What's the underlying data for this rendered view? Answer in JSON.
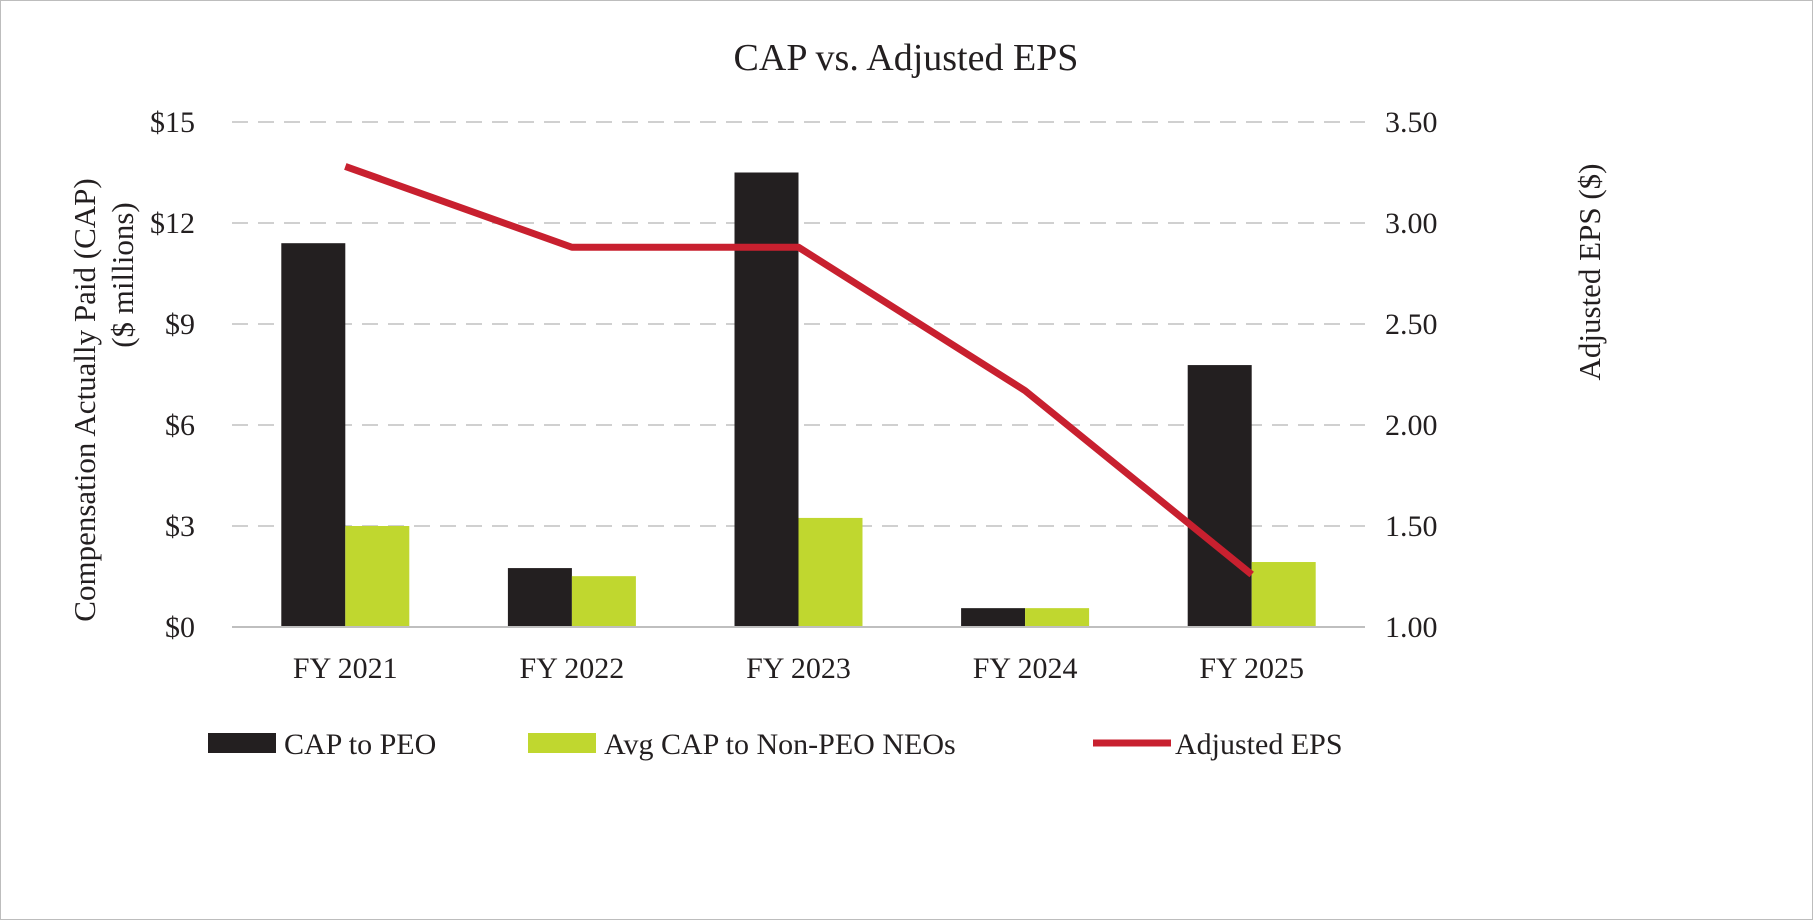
{
  "chart_data": {
    "type": "bar",
    "title": "CAP vs. Adjusted EPS",
    "categories": [
      "FY 2021",
      "FY 2022",
      "FY 2023",
      "FY 2024",
      "FY 2025"
    ],
    "y_left": {
      "label_line1": "Compensation Actually Paid (CAP)",
      "label_line2": "($ millions)",
      "range": [
        0,
        15
      ],
      "ticks": [
        0,
        3,
        6,
        9,
        12,
        15
      ],
      "tick_labels": [
        "$0",
        "$3",
        "$6",
        "$9",
        "$12",
        "$15"
      ]
    },
    "y_right": {
      "label": "Adjusted EPS ($)",
      "range": [
        1.0,
        3.5
      ],
      "ticks": [
        1.0,
        1.5,
        2.0,
        2.5,
        3.0,
        3.5
      ],
      "tick_labels": [
        "1.00",
        "1.50",
        "2.00",
        "2.50",
        "3.00",
        "3.50"
      ]
    },
    "grid": "horizontal dashed",
    "legend_position": "bottom",
    "series": [
      {
        "name": "CAP to PEO",
        "type": "bar",
        "axis": "left",
        "color": "#231f20",
        "values": [
          11.4,
          1.75,
          13.5,
          0.56,
          7.78
        ]
      },
      {
        "name": "Avg CAP to Non-PEO NEOs",
        "type": "bar",
        "axis": "left",
        "color": "#c0d72f",
        "values": [
          3.0,
          1.51,
          3.24,
          0.56,
          1.93
        ]
      },
      {
        "name": "Adjusted EPS",
        "type": "line",
        "axis": "right",
        "color": "#c8202f",
        "values": [
          3.28,
          2.88,
          2.88,
          2.17,
          1.26
        ]
      }
    ]
  }
}
